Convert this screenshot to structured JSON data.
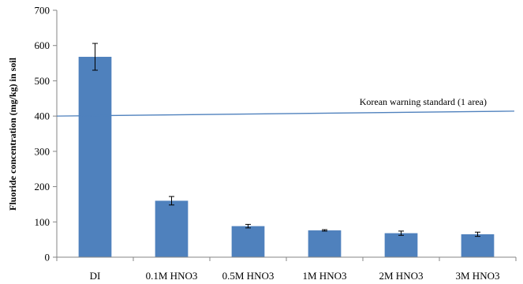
{
  "chart_data": {
    "type": "bar",
    "categories": [
      "DI",
      "0.1M HNO3",
      "0.5M HNO3",
      "1M HNO3",
      "2M HNO3",
      "3M HNO3"
    ],
    "values": [
      568,
      160,
      88,
      76,
      68,
      65
    ],
    "errors": [
      38,
      12,
      5,
      2,
      6,
      6
    ],
    "ylabel": "Fluoride concentration (mg/kg) in soil",
    "ylim": [
      0,
      700
    ],
    "yticks": [
      "0",
      "100",
      "200",
      "300",
      "400",
      "500",
      "600",
      "700"
    ],
    "reference_line": {
      "label": "Korean warning standard (1 area)",
      "value_start": 400,
      "value_end": 414
    },
    "grid": false,
    "legend": "none",
    "bar_color": "#4f81bd",
    "line_color": "#4f81bd"
  }
}
